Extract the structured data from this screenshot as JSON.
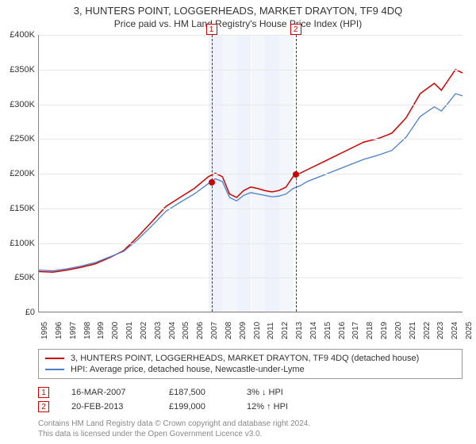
{
  "title": "3, HUNTERS POINT, LOGGERHEADS, MARKET DRAYTON, TF9 4DQ",
  "subtitle": "Price paid vs. HM Land Registry's House Price Index (HPI)",
  "chart": {
    "type": "line",
    "background_color": "#ffffff",
    "grid_color": "#e8e8e8",
    "axis_color": "#888888",
    "x_years": [
      1995,
      1996,
      1997,
      1998,
      1999,
      2000,
      2001,
      2002,
      2003,
      2004,
      2005,
      2006,
      2007,
      2008,
      2009,
      2010,
      2011,
      2012,
      2013,
      2014,
      2015,
      2016,
      2017,
      2018,
      2019,
      2020,
      2021,
      2022,
      2023,
      2024,
      2025
    ],
    "y_ticks": [
      0,
      50000,
      100000,
      150000,
      200000,
      250000,
      300000,
      350000,
      400000
    ],
    "y_tick_labels": [
      "£0",
      "£50K",
      "£100K",
      "£150K",
      "£200K",
      "£250K",
      "£300K",
      "£350K",
      "£400K"
    ],
    "ylim": [
      0,
      400000
    ],
    "xlim": [
      1995,
      2025
    ],
    "bands": [
      {
        "from": 2007,
        "to": 2008,
        "color": "#eef2fa"
      },
      {
        "from": 2008,
        "to": 2009,
        "color": "#f3f6fb"
      },
      {
        "from": 2009,
        "to": 2010,
        "color": "#eef2fa"
      },
      {
        "from": 2010,
        "to": 2011,
        "color": "#f3f6fb"
      },
      {
        "from": 2011,
        "to": 2012,
        "color": "#eef2fa"
      },
      {
        "from": 2012,
        "to": 2013,
        "color": "#f3f6fb"
      }
    ],
    "event_lines": [
      {
        "id": "1",
        "x": 2007.2,
        "label": "1"
      },
      {
        "id": "2",
        "x": 2013.15,
        "label": "2"
      }
    ],
    "series": [
      {
        "name": "property",
        "label": "3, HUNTERS POINT, LOGGERHEADS, MARKET DRAYTON, TF9 4DQ (detached house)",
        "color": "#cc0000",
        "line_width": 1.5,
        "points": [
          [
            1995,
            58000
          ],
          [
            1996,
            57000
          ],
          [
            1997,
            60000
          ],
          [
            1998,
            64000
          ],
          [
            1999,
            69000
          ],
          [
            2000,
            78000
          ],
          [
            2001,
            88000
          ],
          [
            2002,
            108000
          ],
          [
            2003,
            130000
          ],
          [
            2004,
            152000
          ],
          [
            2005,
            165000
          ],
          [
            2006,
            178000
          ],
          [
            2007,
            195000
          ],
          [
            2007.5,
            200000
          ],
          [
            2008,
            195000
          ],
          [
            2008.5,
            170000
          ],
          [
            2009,
            165000
          ],
          [
            2009.5,
            175000
          ],
          [
            2010,
            180000
          ],
          [
            2010.5,
            178000
          ],
          [
            2011,
            175000
          ],
          [
            2011.5,
            173000
          ],
          [
            2012,
            175000
          ],
          [
            2012.5,
            180000
          ],
          [
            2013,
            195000
          ],
          [
            2013.5,
            200000
          ],
          [
            2014,
            205000
          ],
          [
            2015,
            215000
          ],
          [
            2016,
            225000
          ],
          [
            2017,
            235000
          ],
          [
            2018,
            245000
          ],
          [
            2019,
            250000
          ],
          [
            2020,
            258000
          ],
          [
            2021,
            280000
          ],
          [
            2022,
            315000
          ],
          [
            2023,
            330000
          ],
          [
            2023.5,
            320000
          ],
          [
            2024,
            335000
          ],
          [
            2024.5,
            350000
          ],
          [
            2025,
            345000
          ]
        ]
      },
      {
        "name": "hpi",
        "label": "HPI: Average price, detached house, Newcastle-under-Lyme",
        "color": "#4a7ec8",
        "line_width": 1.3,
        "points": [
          [
            1995,
            60000
          ],
          [
            1996,
            59000
          ],
          [
            1997,
            62000
          ],
          [
            1998,
            66000
          ],
          [
            1999,
            71000
          ],
          [
            2000,
            79000
          ],
          [
            2001,
            87000
          ],
          [
            2002,
            104000
          ],
          [
            2003,
            124000
          ],
          [
            2004,
            145000
          ],
          [
            2005,
            158000
          ],
          [
            2006,
            170000
          ],
          [
            2007,
            185000
          ],
          [
            2007.5,
            192000
          ],
          [
            2008,
            188000
          ],
          [
            2008.5,
            165000
          ],
          [
            2009,
            160000
          ],
          [
            2009.5,
            168000
          ],
          [
            2010,
            172000
          ],
          [
            2010.5,
            170000
          ],
          [
            2011,
            168000
          ],
          [
            2011.5,
            166000
          ],
          [
            2012,
            167000
          ],
          [
            2012.5,
            170000
          ],
          [
            2013,
            178000
          ],
          [
            2013.5,
            182000
          ],
          [
            2014,
            188000
          ],
          [
            2015,
            196000
          ],
          [
            2016,
            204000
          ],
          [
            2017,
            212000
          ],
          [
            2018,
            220000
          ],
          [
            2019,
            226000
          ],
          [
            2020,
            233000
          ],
          [
            2021,
            252000
          ],
          [
            2022,
            282000
          ],
          [
            2023,
            296000
          ],
          [
            2023.5,
            290000
          ],
          [
            2024,
            302000
          ],
          [
            2024.5,
            315000
          ],
          [
            2025,
            312000
          ]
        ]
      }
    ],
    "markers": [
      {
        "x": 2007.2,
        "y": 187500,
        "color": "#cc0000",
        "size": 8
      },
      {
        "x": 2013.15,
        "y": 199000,
        "color": "#cc0000",
        "size": 8
      }
    ]
  },
  "legend": {
    "items": [
      {
        "color": "#cc0000",
        "label": "3, HUNTERS POINT, LOGGERHEADS, MARKET DRAYTON, TF9 4DQ (detached house)"
      },
      {
        "color": "#4a7ec8",
        "label": "HPI: Average price, detached house, Newcastle-under-Lyme"
      }
    ]
  },
  "events": [
    {
      "num": "1",
      "date": "16-MAR-2007",
      "price": "£187,500",
      "pct": "3% ↓ HPI"
    },
    {
      "num": "2",
      "date": "20-FEB-2013",
      "price": "£199,000",
      "pct": "12% ↑ HPI"
    }
  ],
  "footer": {
    "line1": "Contains HM Land Registry data © Crown copyright and database right 2024.",
    "line2": "This data is licensed under the Open Government Licence v3.0."
  }
}
